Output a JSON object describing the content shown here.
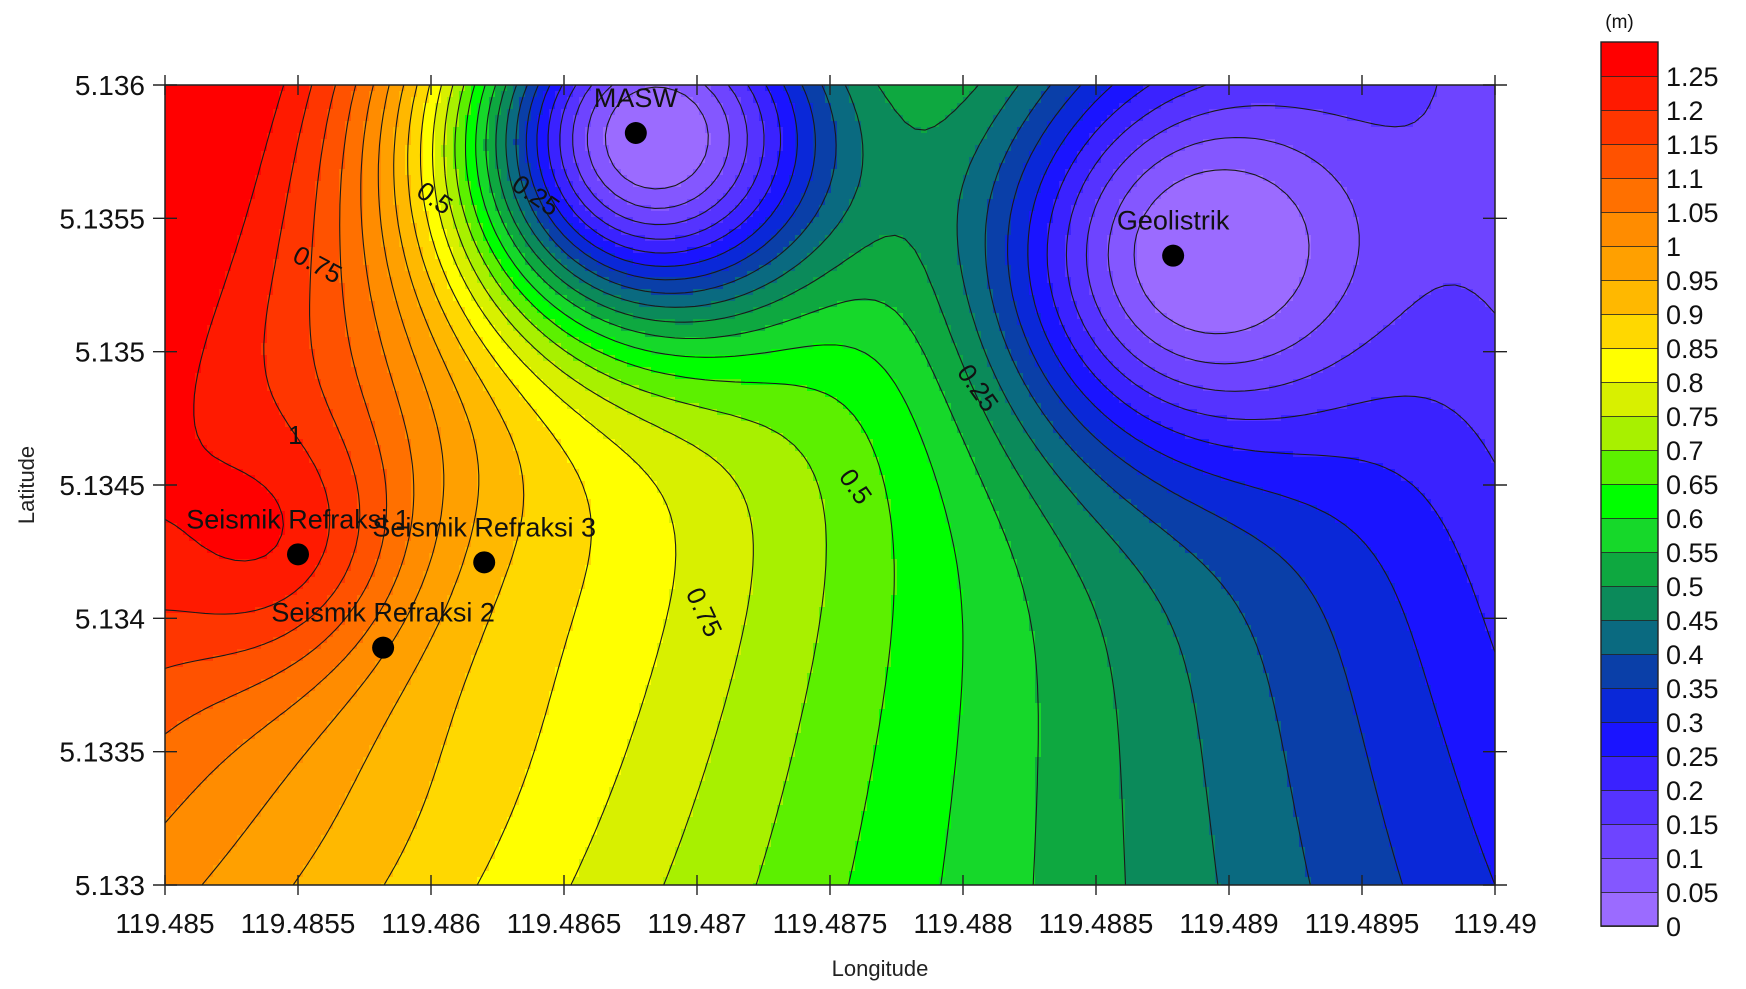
{
  "chart_data": {
    "type": "heatmap",
    "subtype": "filled-contour",
    "title": "",
    "xlabel": "Longitude",
    "ylabel": "Latitude",
    "xlim": [
      119.485,
      119.49
    ],
    "ylim": [
      5.133,
      5.136
    ],
    "x_ticks": [
      119.485,
      119.4855,
      119.486,
      119.4865,
      119.487,
      119.4875,
      119.488,
      119.4885,
      119.489,
      119.4895,
      119.49
    ],
    "x_tick_labels": [
      "119.485",
      "119.4855",
      "119.486",
      "119.4865",
      "119.487",
      "119.4875",
      "119.488",
      "119.4885",
      "119.489",
      "119.4895",
      "119.49"
    ],
    "y_ticks": [
      5.133,
      5.1335,
      5.134,
      5.1345,
      5.135,
      5.1355,
      5.136
    ],
    "y_tick_labels": [
      "5.133",
      "5.1335",
      "5.134",
      "5.1345",
      "5.135",
      "5.1355",
      "5.136"
    ],
    "colorbar": {
      "unit": "(m)",
      "min": 0,
      "max": 1.3,
      "step": 0.05,
      "tick_labels": [
        "0",
        "0.05",
        "0.1",
        "0.15",
        "0.2",
        "0.25",
        "0.3",
        "0.35",
        "0.4",
        "0.45",
        "0.5",
        "0.55",
        "0.6",
        "0.65",
        "0.7",
        "0.75",
        "0.8",
        "0.85",
        "0.9",
        "0.95",
        "1",
        "1.05",
        "1.1",
        "1.15",
        "1.2",
        "1.25"
      ],
      "colors": [
        "#9b6bff",
        "#8457ff",
        "#6e44ff",
        "#5533ff",
        "#3a22ff",
        "#1a14ff",
        "#0a28d8",
        "#0a3fa8",
        "#0a6a80",
        "#0b8a5a",
        "#0ea840",
        "#16d82a",
        "#00ff00",
        "#5cf000",
        "#a8f000",
        "#d8f000",
        "#ffff00",
        "#ffd800",
        "#ffb800",
        "#ffa000",
        "#ff8c00",
        "#ff7000",
        "#ff5200",
        "#ff3600",
        "#ff1a00",
        "#ff0000"
      ]
    },
    "sites": [
      {
        "name": "MASW",
        "lon": 119.48677,
        "lat": 5.13582,
        "value": 0.0
      },
      {
        "name": "Geolistrik",
        "lon": 119.48879,
        "lat": 5.13536,
        "value": 0.0
      },
      {
        "name": "Seismik Refraksi 1",
        "lon": 119.4855,
        "lat": 5.13424,
        "value": 1.25
      },
      {
        "name": "Seismik Refraksi 2",
        "lon": 119.48582,
        "lat": 5.13389,
        "value": 0.95
      },
      {
        "name": "Seismik Refraksi 3",
        "lon": 119.4862,
        "lat": 5.13421,
        "value": 0.92
      }
    ],
    "contour_labels": [
      {
        "text": "0.5",
        "lon": 119.48601,
        "lat": 5.13557,
        "angle": 35
      },
      {
        "text": "0.25",
        "lon": 119.48639,
        "lat": 5.13558,
        "angle": 35
      },
      {
        "text": "0.75",
        "lon": 119.48557,
        "lat": 5.13532,
        "angle": 28
      },
      {
        "text": "1",
        "lon": 119.48549,
        "lat": 5.13468,
        "angle": 0
      },
      {
        "text": "0.25",
        "lon": 119.48805,
        "lat": 5.13486,
        "angle": 55
      },
      {
        "text": "0.5",
        "lon": 119.48759,
        "lat": 5.13449,
        "angle": 55
      },
      {
        "text": "0.75",
        "lon": 119.48702,
        "lat": 5.13402,
        "angle": 65
      }
    ]
  }
}
